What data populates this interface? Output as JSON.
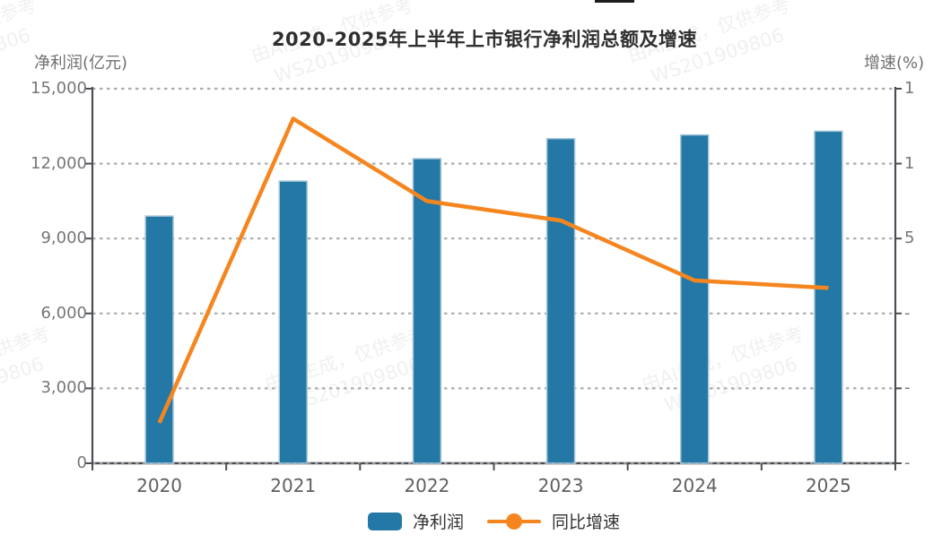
{
  "title": "2020-2025年上半年上市银行净利润总额及增速",
  "left_axis": {
    "title": "净利润(亿元)",
    "tick_labels": [
      "15,000",
      "12,000",
      "9,000",
      "6,000",
      "3,000",
      "0"
    ]
  },
  "right_axis": {
    "title": "增速(%)",
    "visible_tick_labels": [
      "1",
      "1",
      "5",
      "-",
      "-",
      "-"
    ]
  },
  "x_axis": {
    "categories": [
      "2020",
      "2021",
      "2022",
      "2023",
      "2024",
      "2025"
    ]
  },
  "legend": {
    "bar_label": "净利润",
    "line_label": "同比增速"
  },
  "watermark": {
    "line1": "由AI生成，仅供参考",
    "line2": "WS201909806"
  },
  "colors": {
    "bar": "#2478A6",
    "bar_border": "#A9C7DA",
    "line": "#F5861F",
    "grid": "#ACACAC",
    "axis": "#4A4F55",
    "tick_text": "#767676",
    "title_text": "#2F2F2F"
  },
  "chart_data": {
    "type": "bar",
    "subtype": "bar+line dual axis",
    "title": "2020-2025年上半年上市银行净利润总额及增速",
    "categories": [
      "2020",
      "2021",
      "2022",
      "2023",
      "2024",
      "2025"
    ],
    "series": [
      {
        "name": "净利润",
        "type": "bar",
        "axis": "left",
        "unit": "亿元",
        "values": [
          9900,
          11300,
          12200,
          13000,
          13150,
          13300
        ]
      },
      {
        "name": "同比增速",
        "type": "line",
        "axis": "right",
        "unit": "%",
        "values": [
          -7.3,
          13.0,
          7.5,
          6.2,
          2.2,
          1.7
        ]
      }
    ],
    "ylabel_left": "净利润(亿元)",
    "ylabel_right": "增速(%)",
    "ylim_left": [
      0,
      15000
    ],
    "ylim_right": [
      -10,
      15
    ],
    "grid": "horizontal dashed",
    "legend_position": "bottom"
  }
}
